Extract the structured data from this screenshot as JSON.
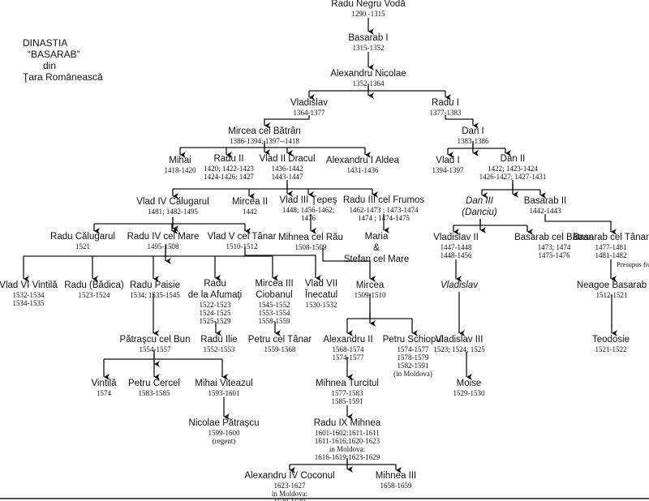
{
  "title": [
    "DINASTIA",
    "“BASARAB”",
    "din",
    "Ţara Românească"
  ],
  "note_presupus": "Presupus fiu",
  "nodes": [
    {
      "name": [
        "Radu Negru Vodă"
      ],
      "dates": [
        "1290 -1315"
      ]
    },
    {
      "name": [
        "Basarab I"
      ],
      "dates": [
        "1315-1352"
      ]
    },
    {
      "name": [
        "Alexandru Nicolae"
      ],
      "dates": [
        "1352-1364"
      ]
    },
    {
      "name": [
        "Vladislav"
      ],
      "dates": [
        "1364-1377"
      ]
    },
    {
      "name": [
        "Radu I"
      ],
      "dates": [
        "1377-1383"
      ]
    },
    {
      "name": [
        "Mircea cel Bătrân"
      ],
      "dates": [
        "1386-1394; 1397--1418"
      ]
    },
    {
      "name": [
        "Dan I"
      ],
      "dates": [
        "1383-1386"
      ]
    },
    {
      "name": [
        "Mihai"
      ],
      "dates": [
        "1418-1420"
      ]
    },
    {
      "name": [
        "Radu II"
      ],
      "dates": [
        "1420; 1422-1423",
        "1424-1426; 1427"
      ]
    },
    {
      "name": [
        "Vlad II Dracul"
      ],
      "dates": [
        "1436-1442",
        "1443-1447"
      ]
    },
    {
      "name": [
        "Alexandru I Aldea"
      ],
      "dates": [
        "1431-1436"
      ]
    },
    {
      "name": [
        "Vlad I"
      ],
      "dates": [
        "1394-1397"
      ]
    },
    {
      "name": [
        "Dan II"
      ],
      "dates": [
        "1422; 1423-1424",
        "1426-1427; 1427-1431"
      ]
    },
    {
      "name": [
        "Vlad IV Călugarul"
      ],
      "dates": [
        "1481; 1482-1495"
      ]
    },
    {
      "name": [
        "Mircea II"
      ],
      "dates": [
        "1442"
      ]
    },
    {
      "name": [
        "Vlad III Ţepeş"
      ],
      "dates": [
        "1448; 1456-1462;",
        "1476"
      ]
    },
    {
      "name": [
        "Radu III cel Frumos"
      ],
      "dates": [
        "1462-1473 ; 1473-1474",
        "1474 ; 1474-1475"
      ]
    },
    {
      "name": [
        "Dan III",
        "(Danciu)"
      ],
      "dates": [],
      "italic": true
    },
    {
      "name": [
        "Basarab II"
      ],
      "dates": [
        "1442-1443"
      ]
    },
    {
      "name": [
        "Radu Călugarul"
      ],
      "dates": [
        "1521"
      ]
    },
    {
      "name": [
        "Radu IV cel Mare"
      ],
      "dates": [
        "1495-1508"
      ]
    },
    {
      "name": [
        "Vlad V cel Tânar"
      ],
      "dates": [
        "1510-1512"
      ]
    },
    {
      "name": [
        "Mihnea cel Rău"
      ],
      "dates": [
        "1508-1509"
      ]
    },
    {
      "name": [
        "Maria",
        "&",
        "Stefan cel Mare"
      ],
      "dates": []
    },
    {
      "name": [
        "Vladislav II"
      ],
      "dates": [
        "1447-1448",
        "1448-1456"
      ]
    },
    {
      "name": [
        "Basarab cel Bătran"
      ],
      "dates": [
        "1473; 1474",
        "1475-1476"
      ]
    },
    {
      "name": [
        "Basarab cel Tânar"
      ],
      "dates": [
        "1477-1481",
        "1481-1482"
      ]
    },
    {
      "name": [
        "Vlad VI Vintilă"
      ],
      "dates": [
        "1532-1534",
        "1534-1535"
      ]
    },
    {
      "name": [
        "Radu (Bădica)"
      ],
      "dates": [
        "1523-1524"
      ]
    },
    {
      "name": [
        "Radu Paisie"
      ],
      "dates": [
        "1534; 1535-1545"
      ]
    },
    {
      "name": [
        "Radu",
        "de la Afumaţi"
      ],
      "dates": [
        "1522-1523",
        "1524-1525",
        "1525-1529"
      ]
    },
    {
      "name": [
        "Mircea III",
        "Ciobanul"
      ],
      "dates": [
        "1545-1552",
        "1553-1554",
        "1558-1559"
      ]
    },
    {
      "name": [
        "Vlad VII",
        "Înecatul"
      ],
      "dates": [
        "1530-1532"
      ]
    },
    {
      "name": [
        "Mircea"
      ],
      "dates": [
        "1509-1510"
      ]
    },
    {
      "name": [
        "Vladislav"
      ],
      "dates": [],
      "italic": true
    },
    {
      "name": [
        "Neagoe Basarab"
      ],
      "dates": [
        "1512-1521"
      ]
    },
    {
      "name": [
        "Pătraşcu cel Bun"
      ],
      "dates": [
        "1554-1557"
      ]
    },
    {
      "name": [
        "Radu Ilie"
      ],
      "dates": [
        "1552-1553"
      ]
    },
    {
      "name": [
        "Petru cel Tânar"
      ],
      "dates": [
        "1559-1568"
      ]
    },
    {
      "name": [
        "Alexandru II"
      ],
      "dates": [
        "1568-1574",
        "1574-1577"
      ]
    },
    {
      "name": [
        "Petru Schiopul"
      ],
      "dates": [
        "1574-1577",
        "1578-1579",
        "1582-1591",
        "(in Moldova)"
      ]
    },
    {
      "name": [
        "Vladislav III"
      ],
      "dates": [
        "1523; 1524; 1525"
      ]
    },
    {
      "name": [
        "Teodosie"
      ],
      "dates": [
        "1521-1522"
      ]
    },
    {
      "name": [
        "Vintilă"
      ],
      "dates": [
        "1574"
      ]
    },
    {
      "name": [
        "Petru Cercel"
      ],
      "dates": [
        "1583-1585"
      ]
    },
    {
      "name": [
        "Mihai Viteazul"
      ],
      "dates": [
        "1593-1601"
      ]
    },
    {
      "name": [
        "Mihnea Turcitul"
      ],
      "dates": [
        "1577-1583",
        "1585-1591"
      ]
    },
    {
      "name": [
        "Moise"
      ],
      "dates": [
        "1529-1530"
      ]
    },
    {
      "name": [
        "Nicolae Pătraşcu"
      ],
      "dates": [
        "1599-1600",
        "(regent)"
      ]
    },
    {
      "name": [
        "Radu IX Mihnea"
      ],
      "dates": [
        "1601-1602:1611-1611",
        "1611-1616;1620-1623",
        "in Moldova:",
        "1616-1619;1623-1629"
      ]
    },
    {
      "name": [
        "Alexandru IV Coconul"
      ],
      "dates": [
        "1623-1627",
        "in Moldova:",
        "1629-1630"
      ]
    },
    {
      "name": [
        "Mihnea III"
      ],
      "dates": [
        "1658-1659"
      ]
    }
  ]
}
